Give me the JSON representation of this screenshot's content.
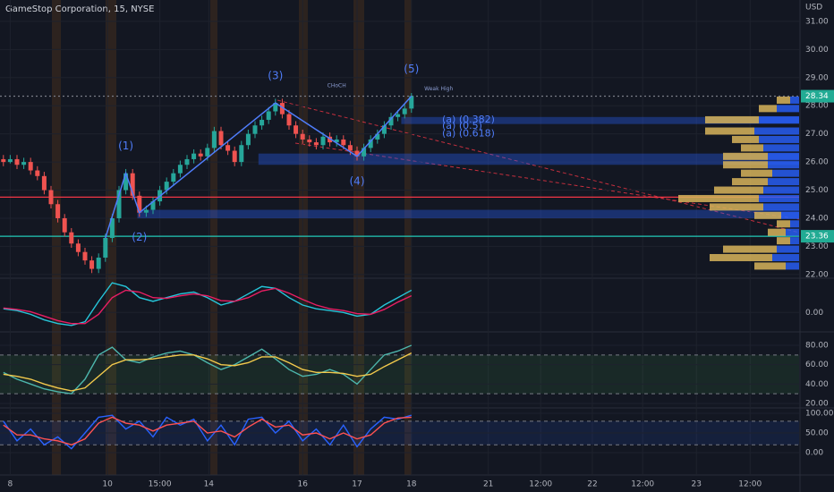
{
  "chart_data": [
    {
      "type": "candlestick",
      "title": "GameStop Corporation, 15, NYSE",
      "currency": "USD",
      "xlim": [
        -0.5,
        117
      ],
      "xticks": [
        {
          "value": 1,
          "label": "8"
        },
        {
          "value": 15.3,
          "label": "10"
        },
        {
          "value": 23,
          "label": "15:00"
        },
        {
          "value": 30.2,
          "label": "14"
        },
        {
          "value": 44,
          "label": "16"
        },
        {
          "value": 52,
          "label": "17"
        },
        {
          "value": 60,
          "label": "18"
        },
        {
          "value": 71.3,
          "label": "21"
        },
        {
          "value": 79,
          "label": "12:00"
        },
        {
          "value": 86.6,
          "label": "22"
        },
        {
          "value": 94,
          "label": "12:00"
        },
        {
          "value": 101.9,
          "label": "23"
        },
        {
          "value": 109.8,
          "label": "12:00"
        }
      ],
      "ylim": [
        21.9,
        31.76
      ],
      "yticks": [
        {
          "value": 22,
          "label": "22.00"
        },
        {
          "value": 23,
          "label": "23.00"
        },
        {
          "value": 24,
          "label": "24.00"
        },
        {
          "value": 25,
          "label": "25.00"
        },
        {
          "value": 26,
          "label": "26.00"
        },
        {
          "value": 27,
          "label": "27.00"
        },
        {
          "value": 28,
          "label": "28.00"
        },
        {
          "value": 29,
          "label": "29.00"
        },
        {
          "value": 30,
          "label": "30.00"
        },
        {
          "value": 31,
          "label": "31.00"
        }
      ],
      "grid": true,
      "up_color": "#26a69a",
      "down_color": "#ef5350",
      "open": [
        26.1,
        26.0,
        26.1,
        25.9,
        26.0,
        25.7,
        25.5,
        25.0,
        24.5,
        24.0,
        23.5,
        23.1,
        22.8,
        22.5,
        22.2,
        22.6,
        23.3,
        24.0,
        25.0,
        25.6,
        24.8,
        24.2,
        24.3,
        24.6,
        25.0,
        25.3,
        25.6,
        25.9,
        26.1,
        26.3,
        26.2,
        26.5,
        27.1,
        26.6,
        26.4,
        26.0,
        26.6,
        27.0,
        27.3,
        27.5,
        27.8,
        28.1,
        27.7,
        27.3,
        27.0,
        26.8,
        26.7,
        26.6,
        26.9,
        26.7,
        26.8,
        26.6,
        26.4,
        26.2,
        26.5,
        26.8,
        27.0,
        27.3,
        27.6,
        27.7,
        27.9
      ],
      "high": [
        26.25,
        26.25,
        26.25,
        26.15,
        26.15,
        25.85,
        25.65,
        25.15,
        24.65,
        24.15,
        23.65,
        23.25,
        22.95,
        22.65,
        22.75,
        23.45,
        24.15,
        25.15,
        25.75,
        25.75,
        24.95,
        24.45,
        24.75,
        25.15,
        25.45,
        25.75,
        26.05,
        26.25,
        26.45,
        26.45,
        26.65,
        27.25,
        27.25,
        26.75,
        26.55,
        26.75,
        27.15,
        27.45,
        27.65,
        27.95,
        28.25,
        28.25,
        27.85,
        27.45,
        27.15,
        26.95,
        26.85,
        27.05,
        27.05,
        26.95,
        26.95,
        26.75,
        26.55,
        26.65,
        26.95,
        27.15,
        27.45,
        27.75,
        27.85,
        28.05,
        28.45
      ],
      "low": [
        25.85,
        25.95,
        25.75,
        25.75,
        25.55,
        25.35,
        24.85,
        24.35,
        23.85,
        23.35,
        22.95,
        22.65,
        22.35,
        22.05,
        22.05,
        22.45,
        23.15,
        23.85,
        24.85,
        24.65,
        24.05,
        24.05,
        24.15,
        24.45,
        24.85,
        25.15,
        25.45,
        25.75,
        25.95,
        26.05,
        26.05,
        26.35,
        26.45,
        26.25,
        25.85,
        25.85,
        26.45,
        26.85,
        27.15,
        27.35,
        27.65,
        27.55,
        27.15,
        26.85,
        26.65,
        26.55,
        26.45,
        26.45,
        26.55,
        26.55,
        26.45,
        26.25,
        26.05,
        26.05,
        26.35,
        26.65,
        26.85,
        27.15,
        27.45,
        27.55,
        27.75
      ],
      "close": [
        26.0,
        26.1,
        25.9,
        26.0,
        25.7,
        25.5,
        25.0,
        24.5,
        24.0,
        23.5,
        23.1,
        22.8,
        22.5,
        22.2,
        22.6,
        23.3,
        24.0,
        25.0,
        25.6,
        24.8,
        24.2,
        24.3,
        24.6,
        25.0,
        25.3,
        25.6,
        25.9,
        26.1,
        26.3,
        26.2,
        26.5,
        27.1,
        26.6,
        26.4,
        26.0,
        26.6,
        27.0,
        27.3,
        27.5,
        27.8,
        28.1,
        27.7,
        27.3,
        27.0,
        26.8,
        26.7,
        26.6,
        26.9,
        26.7,
        26.8,
        26.6,
        26.4,
        26.2,
        26.5,
        26.8,
        27.0,
        27.3,
        27.6,
        27.7,
        27.9,
        28.34
      ],
      "levels": [
        {
          "value": 24.75,
          "color": "#f23645",
          "dash": false
        },
        {
          "value": 23.36,
          "color": "#22c9b8",
          "dash": false
        },
        {
          "value": 28.34,
          "color": "#787b86",
          "dash": true
        }
      ],
      "price_labels": [
        {
          "value": 28.34,
          "label": "28.34",
          "color": "#22ab94"
        },
        {
          "value": 23.36,
          "label": "23.36",
          "color": "#22ab94"
        }
      ],
      "zones": [
        {
          "from": 27.35,
          "to": 27.6,
          "start": 58.5,
          "color": "#2962ff"
        },
        {
          "from": 25.9,
          "to": 26.3,
          "start": 37.5,
          "color": "#2962ff"
        },
        {
          "from": 24.0,
          "to": 24.3,
          "start": 19.7,
          "color": "#2962ff"
        }
      ],
      "waves": {
        "color": "#4f7dfa",
        "x": [
          15,
          18,
          20,
          40,
          52,
          60
        ],
        "y": [
          23.3,
          25.6,
          24.2,
          28.1,
          26.2,
          28.34
        ],
        "labels": [
          null,
          "(1)",
          "(2)",
          "(3)",
          "(4)",
          "(5)"
        ]
      },
      "fib_labels": {
        "color": "#4f7dfa",
        "x": [
          64.5,
          64.5,
          64.5
        ],
        "y": [
          27.5,
          27.28,
          27.0
        ],
        "labels": [
          "(a) (0.382)",
          "(a) (0.5)",
          "(a) (0.618)"
        ]
      },
      "annotations": [
        {
          "text": "CHoCH",
          "x": 49,
          "y": 28.7
        },
        {
          "text": "Weak High",
          "x": 64,
          "y": 28.6
        }
      ],
      "volume_profile": {
        "xlim": [
          0,
          150
        ],
        "up_color": "#2962ff",
        "down_color": "#d8b45a",
        "prices": [
          28.2,
          27.9,
          27.5,
          27.1,
          26.8,
          26.5,
          26.2,
          25.9,
          25.6,
          25.3,
          25.0,
          24.7,
          24.4,
          24.1,
          23.8,
          23.5,
          23.2,
          22.9,
          22.6,
          22.3
        ],
        "up": [
          10,
          25,
          45,
          50,
          45,
          40,
          35,
          35,
          30,
          35,
          40,
          45,
          40,
          20,
          10,
          15,
          10,
          25,
          30,
          15
        ],
        "down": [
          15,
          20,
          60,
          55,
          30,
          25,
          50,
          50,
          35,
          40,
          55,
          90,
          60,
          30,
          15,
          20,
          15,
          60,
          70,
          35
        ]
      }
    },
    {
      "type": "line",
      "ylim": [
        -0.5,
        0.9
      ],
      "yticks": [
        {
          "value": 0,
          "label": "0.00"
        }
      ],
      "x": [
        0,
        2,
        4,
        6,
        8,
        10,
        12,
        14,
        16,
        18,
        20,
        22,
        24,
        26,
        28,
        30,
        32,
        34,
        36,
        38,
        40,
        42,
        44,
        46,
        48,
        50,
        52,
        54,
        56,
        58,
        60
      ],
      "series": [
        {
          "color": "#26c6da",
          "values": [
            0.1,
            0.05,
            -0.05,
            -0.2,
            -0.3,
            -0.35,
            -0.25,
            0.3,
            0.8,
            0.7,
            0.4,
            0.3,
            0.4,
            0.5,
            0.55,
            0.4,
            0.2,
            0.3,
            0.5,
            0.7,
            0.65,
            0.4,
            0.2,
            0.1,
            0.05,
            0.0,
            -0.1,
            -0.05,
            0.2,
            0.4,
            0.6
          ]
        },
        {
          "color": "#e91e63",
          "values": [
            0.12,
            0.08,
            0.02,
            -0.1,
            -0.22,
            -0.3,
            -0.3,
            -0.05,
            0.4,
            0.6,
            0.55,
            0.4,
            0.38,
            0.45,
            0.5,
            0.45,
            0.32,
            0.3,
            0.4,
            0.58,
            0.65,
            0.52,
            0.35,
            0.2,
            0.1,
            0.05,
            -0.03,
            -0.05,
            0.08,
            0.28,
            0.45
          ]
        }
      ]
    },
    {
      "type": "line",
      "ylim": [
        16.3,
        92.9
      ],
      "yticks": [
        {
          "value": 20,
          "label": "20.00"
        },
        {
          "value": 40,
          "label": "40.00"
        },
        {
          "value": 60,
          "label": "60.00"
        },
        {
          "value": 80,
          "label": "80.00"
        }
      ],
      "bands": [
        30,
        70
      ],
      "band_color": "#4caf50",
      "x": [
        0,
        2,
        4,
        6,
        8,
        10,
        12,
        14,
        16,
        18,
        20,
        22,
        24,
        26,
        28,
        30,
        32,
        34,
        36,
        38,
        40,
        42,
        44,
        46,
        48,
        50,
        52,
        54,
        56,
        58,
        60
      ],
      "series": [
        {
          "color": "#4db6ac",
          "values": [
            52,
            45,
            40,
            35,
            32,
            30,
            45,
            70,
            78,
            65,
            62,
            68,
            72,
            74,
            70,
            62,
            55,
            60,
            68,
            76,
            66,
            55,
            48,
            50,
            55,
            50,
            40,
            55,
            70,
            74,
            80
          ]
        },
        {
          "color": "#f2c94c",
          "values": [
            50,
            48,
            45,
            40,
            36,
            33,
            36,
            48,
            60,
            65,
            65,
            66,
            68,
            70,
            70,
            66,
            60,
            59,
            62,
            68,
            68,
            62,
            55,
            52,
            52,
            51,
            48,
            50,
            58,
            65,
            72
          ]
        }
      ]
    },
    {
      "type": "line",
      "ylim": [
        -54.5,
        111.4
      ],
      "yticks": [
        {
          "value": 0,
          "label": "0.00"
        },
        {
          "value": 50,
          "label": "50.00"
        },
        {
          "value": 100,
          "label": "100.00"
        }
      ],
      "bands": [
        20,
        80
      ],
      "band_color": "#2962ff",
      "x": [
        0,
        2,
        4,
        6,
        8,
        10,
        12,
        14,
        16,
        18,
        20,
        22,
        24,
        26,
        28,
        30,
        32,
        34,
        36,
        38,
        40,
        42,
        44,
        46,
        48,
        50,
        52,
        54,
        56,
        58,
        60
      ],
      "series": [
        {
          "color": "#2962ff",
          "values": [
            80,
            30,
            60,
            20,
            40,
            10,
            50,
            90,
            95,
            60,
            80,
            40,
            90,
            70,
            85,
            30,
            70,
            20,
            85,
            90,
            50,
            80,
            30,
            60,
            20,
            70,
            15,
            60,
            90,
            85,
            95
          ]
        },
        {
          "color": "#ff5252",
          "values": [
            70,
            45,
            45,
            35,
            30,
            20,
            35,
            75,
            90,
            75,
            70,
            55,
            70,
            75,
            80,
            50,
            55,
            40,
            65,
            85,
            65,
            70,
            45,
            50,
            35,
            50,
            35,
            45,
            75,
            88,
            90
          ]
        }
      ]
    }
  ]
}
